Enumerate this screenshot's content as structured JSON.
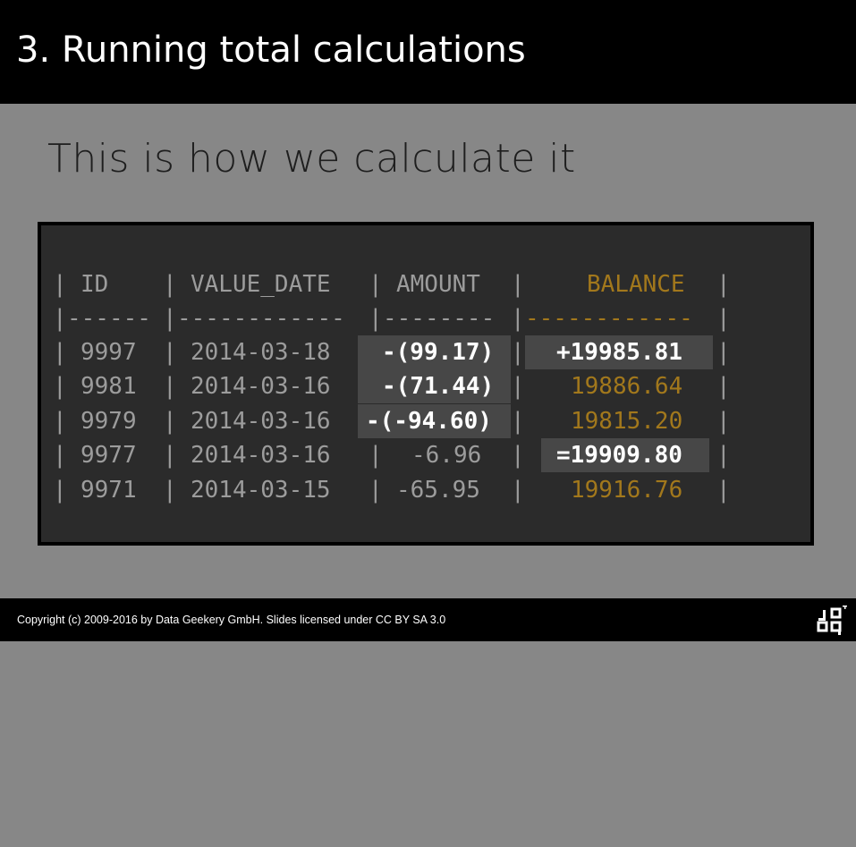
{
  "slide": {
    "title": "3. Running total calculations",
    "subtitle": "This is how we calculate it"
  },
  "table": {
    "headers": [
      "ID",
      "VALUE_DATE",
      "AMOUNT",
      "BALANCE"
    ],
    "separator": [
      "------",
      "------------",
      "--------",
      "------------"
    ],
    "rows": [
      {
        "id": "9997",
        "date": "2014-03-18",
        "amount": "-(99.17)",
        "balance": "+19985.81"
      },
      {
        "id": "9981",
        "date": "2014-03-16",
        "amount": "-(71.44)",
        "balance": "19886.64"
      },
      {
        "id": "9979",
        "date": "2014-03-16",
        "amount": "-(-94.60)",
        "balance": "19815.20"
      },
      {
        "id": "9977",
        "date": "2014-03-16",
        "amount": "-6.96",
        "balance": "=19909.80"
      },
      {
        "id": "9971",
        "date": "2014-03-15",
        "amount": "-65.95",
        "balance": "19916.76"
      }
    ],
    "colors": {
      "balance": "#a2781c",
      "highlight": "#474747",
      "text": "#9c9c9c"
    }
  },
  "footer": {
    "copyright": "Copyright (c) 2009-2016 by Data Geekery GmbH. Slides licensed under CC BY SA 3.0",
    "logo": "jooq-logo-icon"
  }
}
